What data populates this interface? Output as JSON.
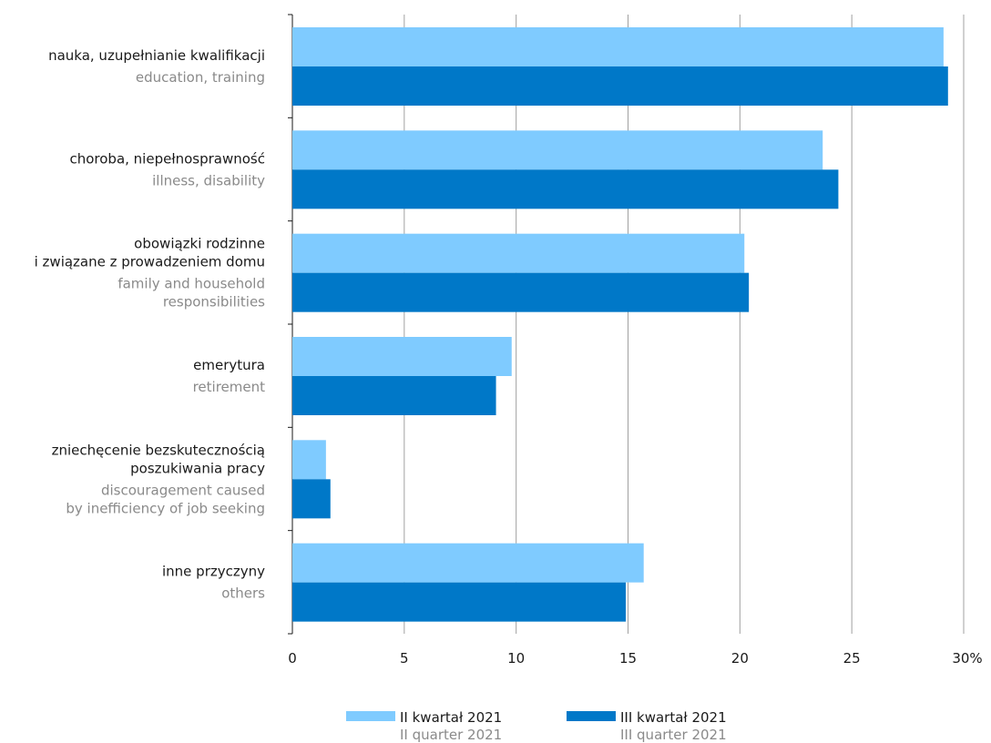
{
  "chart_data": {
    "type": "bar",
    "orientation": "horizontal",
    "categories": [
      {
        "pl": [
          "nauka, uzupełnianie kwalifikacji"
        ],
        "en": [
          "education, training"
        ]
      },
      {
        "pl": [
          "choroba, niepełnosprawność"
        ],
        "en": [
          "illness, disability"
        ]
      },
      {
        "pl": [
          "obowiązki rodzinne",
          "i związane z prowadzeniem domu"
        ],
        "en": [
          "family and household",
          "responsibilities"
        ]
      },
      {
        "pl": [
          "emerytura"
        ],
        "en": [
          "retirement"
        ]
      },
      {
        "pl": [
          "zniechęcenie bezskutecznością",
          "poszukiwania pracy"
        ],
        "en": [
          "discouragement caused",
          "by inefficiency of job seeking"
        ]
      },
      {
        "pl": [
          "inne przyczyny"
        ],
        "en": [
          "others"
        ]
      }
    ],
    "series": [
      {
        "name_pl": "II kwartał 2021",
        "name_en": "II quarter 2021",
        "color": "#7fcbff",
        "values": [
          29.1,
          23.7,
          20.2,
          9.8,
          1.5,
          15.7
        ]
      },
      {
        "name_pl": "III kwartał 2021",
        "name_en": "III quarter 2021",
        "color": "#0078c8",
        "values": [
          29.3,
          24.4,
          20.4,
          9.1,
          1.7,
          14.9
        ]
      }
    ],
    "xlim": [
      0,
      30
    ],
    "xticks": [
      "0",
      "5",
      "10",
      "15",
      "20",
      "25",
      "30%"
    ],
    "grid": true,
    "legend_position": "bottom-center"
  }
}
